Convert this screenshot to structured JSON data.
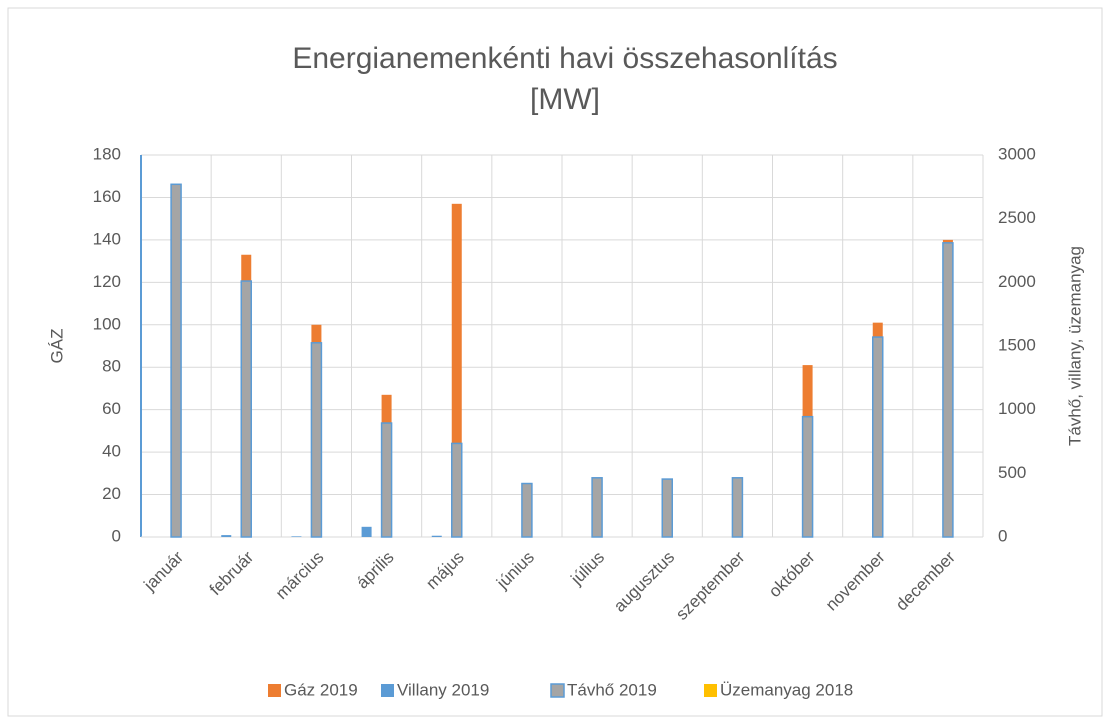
{
  "chart_data": {
    "type": "bar",
    "title": [
      "Energianemenkénti havi összehasonlítás",
      "[MW]"
    ],
    "y_label": "GÁZ",
    "y2_label": "Távhő, villany, üzemanyag",
    "categories": [
      "január",
      "február",
      "március",
      "április",
      "május",
      "június",
      "július",
      "augusztus",
      "szeptember",
      "október",
      "november",
      "december"
    ],
    "series": [
      {
        "name": "Gáz 2019",
        "color": "#ed7d31",
        "axis": "y",
        "values": [
          160,
          133,
          100,
          67,
          157,
          0,
          0,
          0,
          0,
          81,
          101,
          140
        ]
      },
      {
        "name": "Villany 2019",
        "color": "#5b9bd5",
        "axis": "y2",
        "values": [
          0,
          15,
          5,
          80,
          10,
          0,
          0,
          0,
          0,
          0,
          0,
          0
        ]
      },
      {
        "name": "Távhő 2019",
        "color": "#a5a5a5",
        "axis": "y2",
        "values": [
          2770,
          2010,
          1525,
          895,
          735,
          420,
          465,
          455,
          465,
          945,
          1570,
          2310
        ]
      },
      {
        "name": "Üzemanyag 2018",
        "color": "#ffc000",
        "axis": "y2",
        "values": [
          0,
          0,
          0,
          0,
          0,
          0,
          0,
          0,
          0,
          0,
          0,
          0
        ]
      }
    ],
    "ylim": [
      0,
      180
    ],
    "yticks": [
      0,
      20,
      40,
      60,
      80,
      100,
      120,
      140,
      160,
      180
    ],
    "y2lim": [
      0,
      3000
    ],
    "y2ticks": [
      0,
      500,
      1000,
      1500,
      2000,
      2500,
      3000
    ],
    "grid": true,
    "legend": "bottom"
  }
}
